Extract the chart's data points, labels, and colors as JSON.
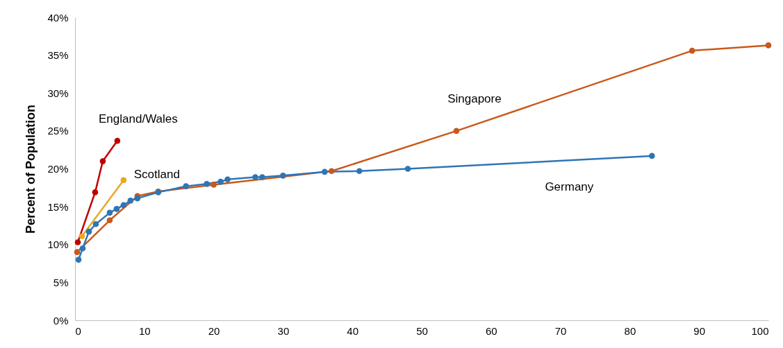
{
  "chart_data": {
    "type": "line",
    "ylabel": "Percent of Population",
    "xlim": [
      0,
      100
    ],
    "xticks": [
      0,
      10,
      20,
      30,
      40,
      50,
      60,
      70,
      80,
      90,
      100
    ],
    "ylim": [
      0,
      40
    ],
    "yticks": [
      {
        "value": 0,
        "label": "0%"
      },
      {
        "value": 5,
        "label": "5%"
      },
      {
        "value": 10,
        "label": "10%"
      },
      {
        "value": 15,
        "label": "15%"
      },
      {
        "value": 20,
        "label": "20%"
      },
      {
        "value": 25,
        "label": "25%"
      },
      {
        "value": 30,
        "label": "30%"
      },
      {
        "value": 35,
        "label": "35%"
      },
      {
        "value": 40,
        "label": "40%"
      }
    ],
    "grid": false,
    "legend": false,
    "marker": "circle",
    "line_style": "solid",
    "series": [
      {
        "name": "England/Wales",
        "color": "#c00000",
        "x": [
          0.4,
          2.9,
          4.0,
          6.1
        ],
        "values": [
          10.3,
          16.9,
          21.0,
          23.7
        ]
      },
      {
        "name": "Scotland",
        "color": "#eaa823",
        "x": [
          1.0,
          7.0
        ],
        "values": [
          11.1,
          18.5
        ]
      },
      {
        "name": "Singapore",
        "color": "#c9591b",
        "x": [
          0.3,
          5,
          9,
          12,
          20,
          37,
          55,
          89,
          100
        ],
        "values": [
          9.0,
          13.2,
          16.4,
          17.0,
          17.9,
          19.7,
          25.0,
          35.6,
          36.3
        ]
      },
      {
        "name": "Germany",
        "color": "#2e75b6",
        "x": [
          0.5,
          1.1,
          2,
          3,
          5,
          6,
          7,
          8,
          9,
          12,
          16,
          19,
          21,
          22,
          26,
          27,
          30,
          36,
          41,
          48,
          83.2
        ],
        "values": [
          8.0,
          9.5,
          11.7,
          12.7,
          14.2,
          14.7,
          15.2,
          15.8,
          16.1,
          16.9,
          17.7,
          18.0,
          18.3,
          18.6,
          18.9,
          18.9,
          19.1,
          19.6,
          19.7,
          20.0,
          21.7
        ]
      }
    ]
  }
}
